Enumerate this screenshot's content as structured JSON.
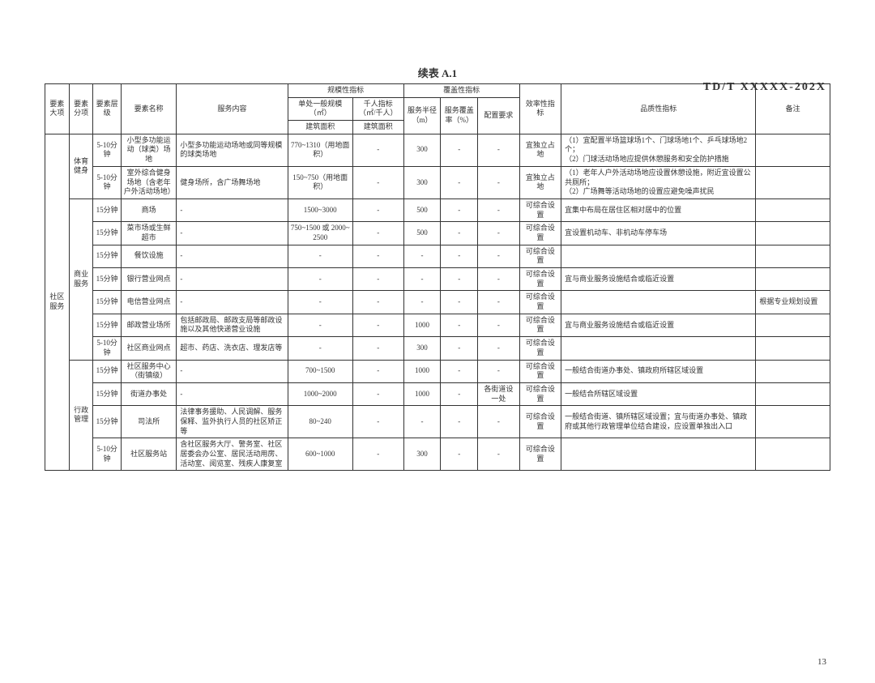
{
  "header_code": "TD/T  XXXXX-202X",
  "page_number": "13",
  "table_title": "续表 A.1",
  "headers": {
    "col_major": "要素大项",
    "col_sub": "要素分项",
    "col_level": "要素层级",
    "col_name": "要素名称",
    "col_content": "服务内容",
    "grp_scale": "规模性指标",
    "scale_unit": "单处一般规模（㎡）",
    "scale_thousand": "千人指标（㎡/千人）",
    "scale_building1": "建筑面积",
    "scale_building2": "建筑面积",
    "grp_coverage": "覆盖性指标",
    "cov_radius": "服务半径（m）",
    "cov_rate": "服务覆盖率（%）",
    "col_config": "配置要求",
    "col_efficiency": "效率性指标",
    "col_quality": "品质性指标",
    "col_note": "备注"
  },
  "majors": {
    "community": "社区服务"
  },
  "subs": {
    "sport": "体育健身",
    "commerce": "商业服务",
    "admin": "行政管理"
  },
  "rows": [
    {
      "level": "5-10分钟",
      "name": "小型多功能运动（球类）场地",
      "content": "小型多功能运动场地或同等规模的球类场地",
      "scale": "770~1310（用地面积）",
      "thousand": "-",
      "radius": "300",
      "rate": "-",
      "config": "-",
      "efficiency": "宜独立占地",
      "quality": "（1）宜配置半场篮球场1个、门球场地1个、乒乓球场地2个；\\n（2）门球活动场地应提供休憩服务和安全防护措施",
      "note": ""
    },
    {
      "level": "5-10分钟",
      "name": "室外综合健身场地（含老年户外活动场地）",
      "content": "健身场所，含广场舞场地",
      "scale": "150~750（用地面积）",
      "thousand": "-",
      "radius": "300",
      "rate": "-",
      "config": "-",
      "efficiency": "宜独立占地",
      "quality": "（1）老年人户外活动场地应设置休憩设施，附近宜设置公共厕所；\\n（2）广场舞等活动场地的设置应避免噪声扰民",
      "note": ""
    },
    {
      "level": "15分钟",
      "name": "商场",
      "content": "-",
      "scale": "1500~3000",
      "thousand": "-",
      "radius": "500",
      "rate": "-",
      "config": "-",
      "efficiency": "可综合设置",
      "quality": "宜集中布局在居住区相对居中的位置",
      "note": ""
    },
    {
      "level": "15分钟",
      "name": "菜市场或生鲜超市",
      "content": "-",
      "scale": "750~1500 或 2000~2500",
      "thousand": "-",
      "radius": "500",
      "rate": "-",
      "config": "-",
      "efficiency": "可综合设置",
      "quality": "宜设置机动车、非机动车停车场",
      "note": ""
    },
    {
      "level": "15分钟",
      "name": "餐饮设施",
      "content": "-",
      "scale": "-",
      "thousand": "-",
      "radius": "-",
      "rate": "-",
      "config": "-",
      "efficiency": "可综合设置",
      "quality": "",
      "note": ""
    },
    {
      "level": "15分钟",
      "name": "银行营业网点",
      "content": "-",
      "scale": "-",
      "thousand": "-",
      "radius": "-",
      "rate": "-",
      "config": "-",
      "efficiency": "可综合设置",
      "quality": "宜与商业服务设施结合或临近设置",
      "note": ""
    },
    {
      "level": "15分钟",
      "name": "电信营业网点",
      "content": "-",
      "scale": "-",
      "thousand": "-",
      "radius": "-",
      "rate": "-",
      "config": "-",
      "efficiency": "可综合设置",
      "quality": "",
      "note": "根据专业规划设置"
    },
    {
      "level": "15分钟",
      "name": "邮政营业场所",
      "content": "包括邮政局、邮政支局等邮政设施以及其他快递营业设施",
      "scale": "-",
      "thousand": "-",
      "radius": "1000",
      "rate": "-",
      "config": "-",
      "efficiency": "可综合设置",
      "quality": "宜与商业服务设施结合或临近设置",
      "note": ""
    },
    {
      "level": "5-10分钟",
      "name": "社区商业网点",
      "content": "超市、药店、洗衣店、理发店等",
      "scale": "-",
      "thousand": "-",
      "radius": "300",
      "rate": "-",
      "config": "-",
      "efficiency": "可综合设置",
      "quality": "",
      "note": ""
    },
    {
      "level": "15分钟",
      "name": "社区服务中心（街镇级）",
      "content": "-",
      "scale": "700~1500",
      "thousand": "-",
      "radius": "1000",
      "rate": "-",
      "config": "-",
      "efficiency": "可综合设置",
      "quality": "一般结合街道办事处、镇政府所辖区域设置",
      "note": ""
    },
    {
      "level": "15分钟",
      "name": "街道办事处",
      "content": "-",
      "scale": "1000~2000",
      "thousand": "-",
      "radius": "1000",
      "rate": "-",
      "config": "各街道设一处",
      "efficiency": "可综合设置",
      "quality": "一般结合所辖区域设置",
      "note": ""
    },
    {
      "level": "15分钟",
      "name": "司法所",
      "content": "法律事务援助、人民调解、服务保释、监外执行人员的社区矫正等",
      "scale": "80~240",
      "thousand": "-",
      "radius": "-",
      "rate": "-",
      "config": "-",
      "efficiency": "可综合设置",
      "quality": "一般结合街道、镇所辖区域设置；宜与街道办事处、镇政府或其他行政管理单位结合建设，应设置单独出入口",
      "note": ""
    },
    {
      "level": "5-10分钟",
      "name": "社区服务站",
      "content": "含社区服务大厅、警务室、社区居委会办公室、居民活动用房、活动室、阅览室、残疾人康复室",
      "scale": "600~1000",
      "thousand": "-",
      "radius": "300",
      "rate": "-",
      "config": "-",
      "efficiency": "可综合设置",
      "quality": "",
      "note": ""
    }
  ]
}
